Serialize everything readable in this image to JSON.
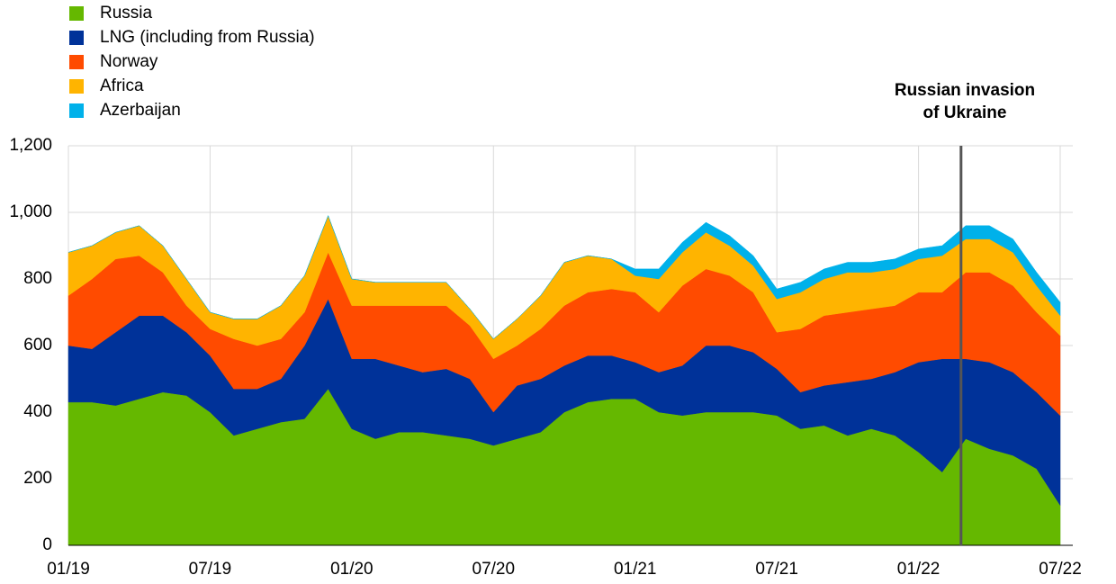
{
  "chart_data": {
    "type": "stacked-area",
    "annotation": [
      "Russian invasion",
      "of Ukraine"
    ],
    "categories": [
      "01/19",
      null,
      null,
      null,
      null,
      null,
      "07/19",
      null,
      null,
      null,
      null,
      null,
      "01/20",
      null,
      null,
      null,
      null,
      null,
      "07/20",
      null,
      null,
      null,
      null,
      null,
      "01/21",
      null,
      null,
      null,
      null,
      null,
      "07/21",
      null,
      null,
      null,
      null,
      null,
      "01/22",
      null,
      null,
      null,
      null,
      null,
      "07/22"
    ],
    "series": [
      {
        "name": "Russia",
        "color": "#65b800",
        "values": [
          430,
          430,
          420,
          440,
          460,
          450,
          400,
          330,
          350,
          370,
          380,
          470,
          350,
          320,
          340,
          340,
          330,
          320,
          300,
          320,
          340,
          400,
          430,
          440,
          440,
          400,
          390,
          400,
          400,
          400,
          390,
          350,
          360,
          330,
          350,
          330,
          280,
          220,
          320,
          290,
          270,
          230,
          120
        ]
      },
      {
        "name": "LNG (including from Russia)",
        "color": "#003299",
        "values": [
          170,
          160,
          220,
          250,
          230,
          190,
          170,
          140,
          120,
          130,
          220,
          270,
          210,
          240,
          200,
          180,
          200,
          180,
          100,
          160,
          160,
          140,
          140,
          130,
          110,
          120,
          150,
          200,
          200,
          180,
          140,
          110,
          120,
          160,
          150,
          190,
          270,
          340,
          240,
          260,
          250,
          230,
          270
        ]
      },
      {
        "name": "Norway",
        "color": "#ff4b00",
        "values": [
          150,
          210,
          220,
          180,
          130,
          80,
          80,
          150,
          130,
          120,
          100,
          140,
          160,
          160,
          180,
          200,
          190,
          160,
          160,
          120,
          150,
          180,
          190,
          200,
          210,
          180,
          240,
          230,
          210,
          180,
          110,
          190,
          210,
          210,
          210,
          200,
          210,
          200,
          260,
          270,
          260,
          240,
          240
        ]
      },
      {
        "name": "Africa",
        "color": "#ffb400",
        "values": [
          130,
          100,
          80,
          90,
          80,
          80,
          50,
          60,
          80,
          100,
          110,
          110,
          80,
          70,
          70,
          70,
          70,
          50,
          60,
          80,
          100,
          130,
          110,
          90,
          50,
          100,
          100,
          110,
          90,
          80,
          100,
          110,
          110,
          120,
          110,
          110,
          100,
          110,
          100,
          100,
          100,
          80,
          60
        ]
      },
      {
        "name": "Azerbaijan",
        "color": "#00b1ea",
        "values": [
          0,
          0,
          0,
          0,
          0,
          0,
          0,
          0,
          0,
          0,
          0,
          0,
          0,
          0,
          0,
          0,
          0,
          0,
          0,
          0,
          0,
          0,
          0,
          0,
          20,
          30,
          30,
          30,
          30,
          30,
          30,
          30,
          30,
          30,
          30,
          30,
          30,
          30,
          40,
          40,
          40,
          40,
          40
        ]
      }
    ],
    "ylim": [
      0,
      1200
    ],
    "yticks": [
      0,
      200,
      400,
      600,
      800,
      {
        "value": 1000,
        "label": "1,000"
      },
      {
        "value": 1200,
        "label": "1,200"
      }
    ],
    "grid": true
  }
}
